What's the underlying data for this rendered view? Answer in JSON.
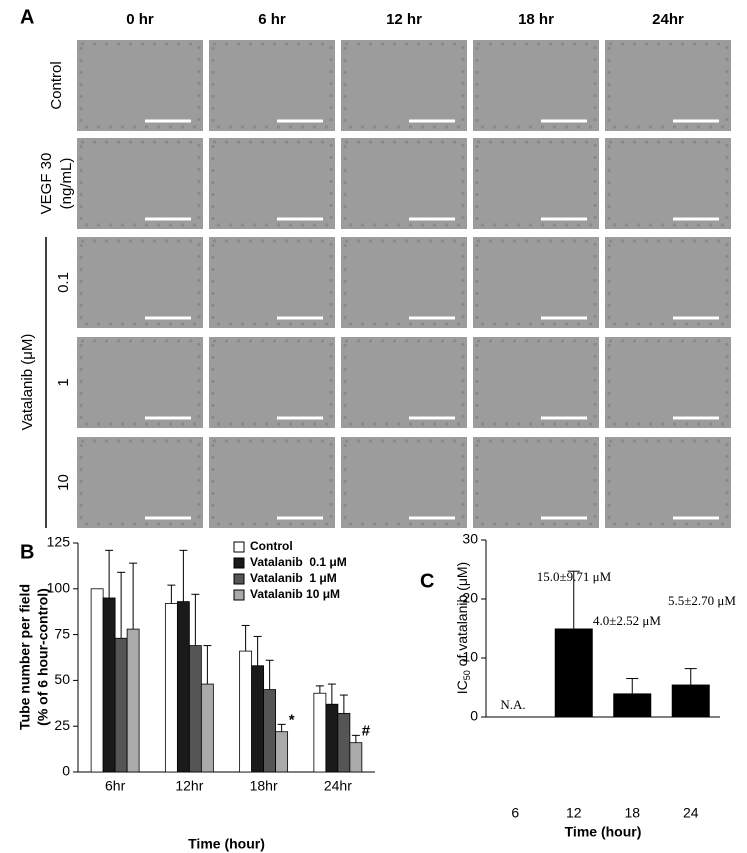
{
  "panel_a": {
    "label": "A",
    "columns": [
      "0 hr",
      "6 hr",
      "12 hr",
      "18 hr",
      "24hr"
    ],
    "row_labels": [
      [
        "Control"
      ],
      [
        "VEGF 30",
        "(ng/mL)"
      ]
    ],
    "group_label": "Vatalanib (μM)",
    "group_rows": [
      "0.1",
      "1",
      "10"
    ]
  },
  "chart_data": [
    {
      "type": "bar",
      "panel": "B",
      "y_label": [
        "Tube number per field",
        "(% of 6 hour-control)"
      ],
      "x_label": "Time (hour)",
      "categories": [
        "6hr",
        "12hr",
        "18hr",
        "24hr"
      ],
      "ylim": [
        0,
        125
      ],
      "yticks": [
        0,
        25,
        50,
        75,
        100,
        125
      ],
      "series": [
        {
          "name": "Control",
          "color": "#ffffff",
          "values": [
            100,
            92,
            66,
            43
          ],
          "errors": [
            null,
            10,
            14,
            4
          ]
        },
        {
          "name": "Vatalanib  0.1 μM",
          "color": "#1a1a1a",
          "values": [
            95,
            93,
            58,
            37
          ],
          "errors": [
            26,
            28,
            16,
            11
          ]
        },
        {
          "name": "Vatalanib  1 μM",
          "color": "#555555",
          "values": [
            73,
            69,
            45,
            32
          ],
          "errors": [
            36,
            28,
            16,
            10
          ]
        },
        {
          "name": "Vatalanib 10 μM",
          "color": "#aaaaaa",
          "values": [
            78,
            48,
            22,
            16
          ],
          "errors": [
            36,
            21,
            4,
            4
          ],
          "markers": [
            null,
            null,
            "*",
            "#"
          ]
        }
      ]
    },
    {
      "type": "bar",
      "panel": "C",
      "y_label": [
        "IC",
        "50",
        " of vatalanib (μM)"
      ],
      "x_label": "Time (hour)",
      "categories": [
        "6",
        "12",
        "18",
        "24"
      ],
      "ylim": [
        0,
        30
      ],
      "yticks": [
        0,
        10,
        20,
        30
      ],
      "color": "#000000",
      "values": [
        null,
        15.0,
        4.0,
        5.5
      ],
      "errors": [
        null,
        9.71,
        2.52,
        2.7
      ],
      "value_labels": [
        "N.A.",
        "15.0±9.71 μM",
        "4.0±2.52 μM",
        "5.5±2.70 μM"
      ]
    }
  ]
}
